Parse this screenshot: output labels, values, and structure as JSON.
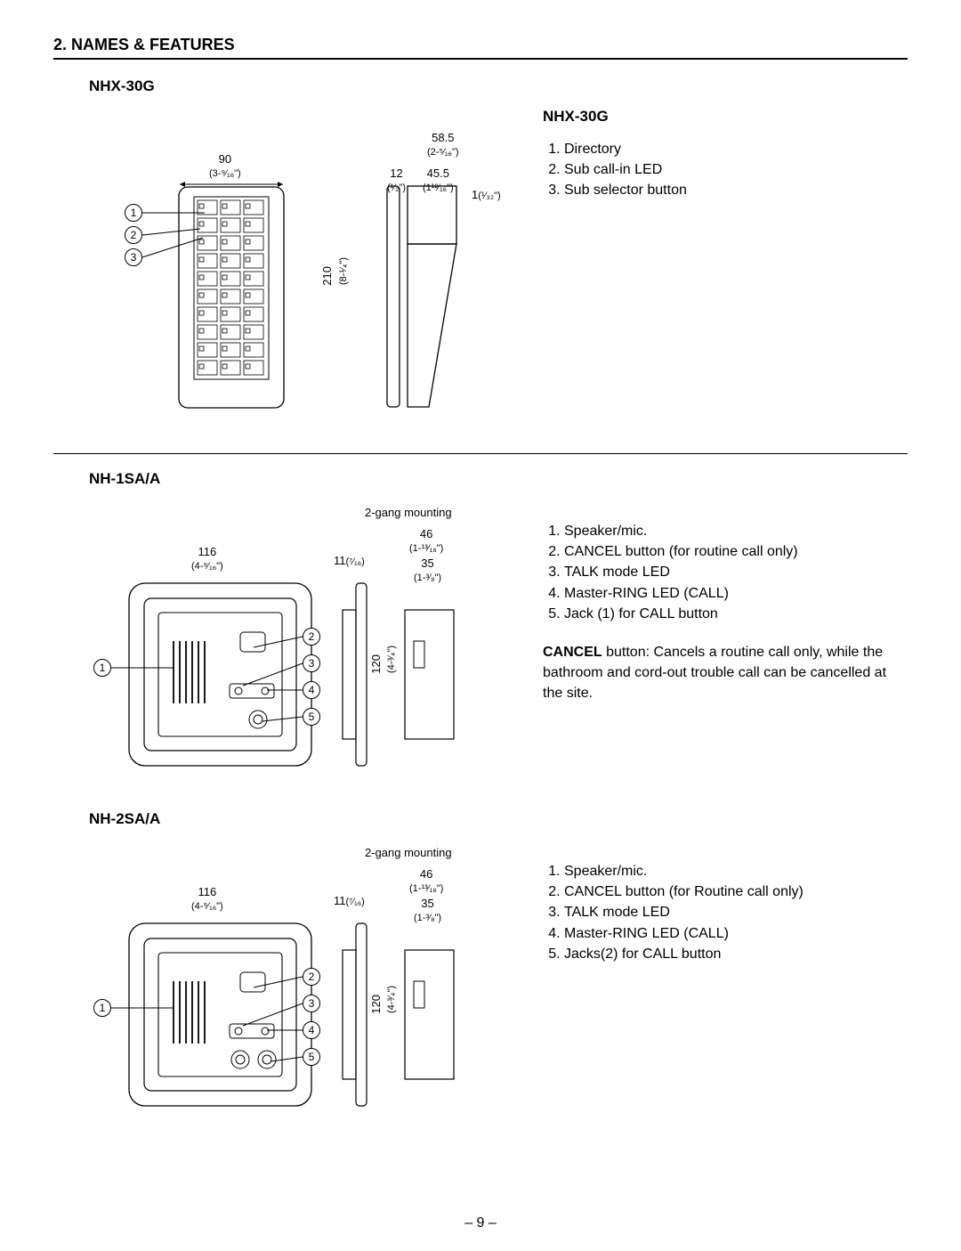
{
  "section_title": "2. NAMES & FEATURES",
  "page_number": "– 9 –",
  "products": {
    "nhx30g": {
      "title": "NHX-30G",
      "desc_title": "NHX-30G",
      "features": [
        "Directory",
        "Sub call-in LED",
        "Sub selector button"
      ],
      "dims": {
        "width_mm": "90",
        "width_in": "(3-⁹⁄₁₆\")",
        "height_mm": "210",
        "height_in": "(8-¹⁄₄\")",
        "top_mm": "58.5",
        "top_in": "(2-⁵⁄₁₆\")",
        "depth1_mm": "12",
        "depth1_in": "(¹⁄₂\")",
        "depth2_mm": "45.5",
        "depth2_in": "(1¹²⁄₁₆\")",
        "gap_mm": "1",
        "gap_in": "(¹⁄₃₂\")"
      },
      "diagram": {
        "front_w": 110,
        "front_h": 240,
        "panel_inset": 15,
        "cols": 3,
        "rows": 10
      }
    },
    "nh1sa": {
      "title": "NH-1SA/A",
      "mount_label": "2-gang mounting",
      "features": [
        "Speaker/mic.",
        "CANCEL button (for routine call only)",
        "TALK mode LED",
        "Master-RING LED (CALL)",
        "Jack (1) for CALL button"
      ],
      "note_bold": "CANCEL",
      "note_rest": " button: Cancels a routine call only, while the bathroom and cord-out trouble call can be cancelled at the site.",
      "dims": {
        "width_mm": "116",
        "width_in": "(4-⁹⁄₁₆\")",
        "depth_mm": "11",
        "depth_in": "(⁷⁄₁₆)",
        "mount_w_mm": "46",
        "mount_w_in": "(1-¹³⁄₁₆\")",
        "mount_d_mm": "35",
        "mount_d_in": "(1-³⁄₈\")",
        "height_mm": "120",
        "height_in": "(4-³⁄₄\")"
      }
    },
    "nh2sa": {
      "title": "NH-2SA/A",
      "mount_label": "2-gang mounting",
      "features": [
        "Speaker/mic.",
        "CANCEL button (for Routine call only)",
        "TALK mode LED",
        "Master-RING LED (CALL)",
        "Jacks(2) for CALL button"
      ],
      "dims": {
        "width_mm": "116",
        "width_in": "(4-⁹⁄₁₆\")",
        "depth_mm": "11",
        "depth_in": "(⁷⁄₁₆)",
        "mount_w_mm": "46",
        "mount_w_in": "(1-¹³⁄₁₆\")",
        "mount_d_mm": "35",
        "mount_d_in": "(1-³⁄₈\")",
        "height_mm": "120",
        "height_in": "(4-³⁄₄\")"
      }
    }
  },
  "colors": {
    "stroke": "#000000",
    "bg": "#ffffff"
  }
}
